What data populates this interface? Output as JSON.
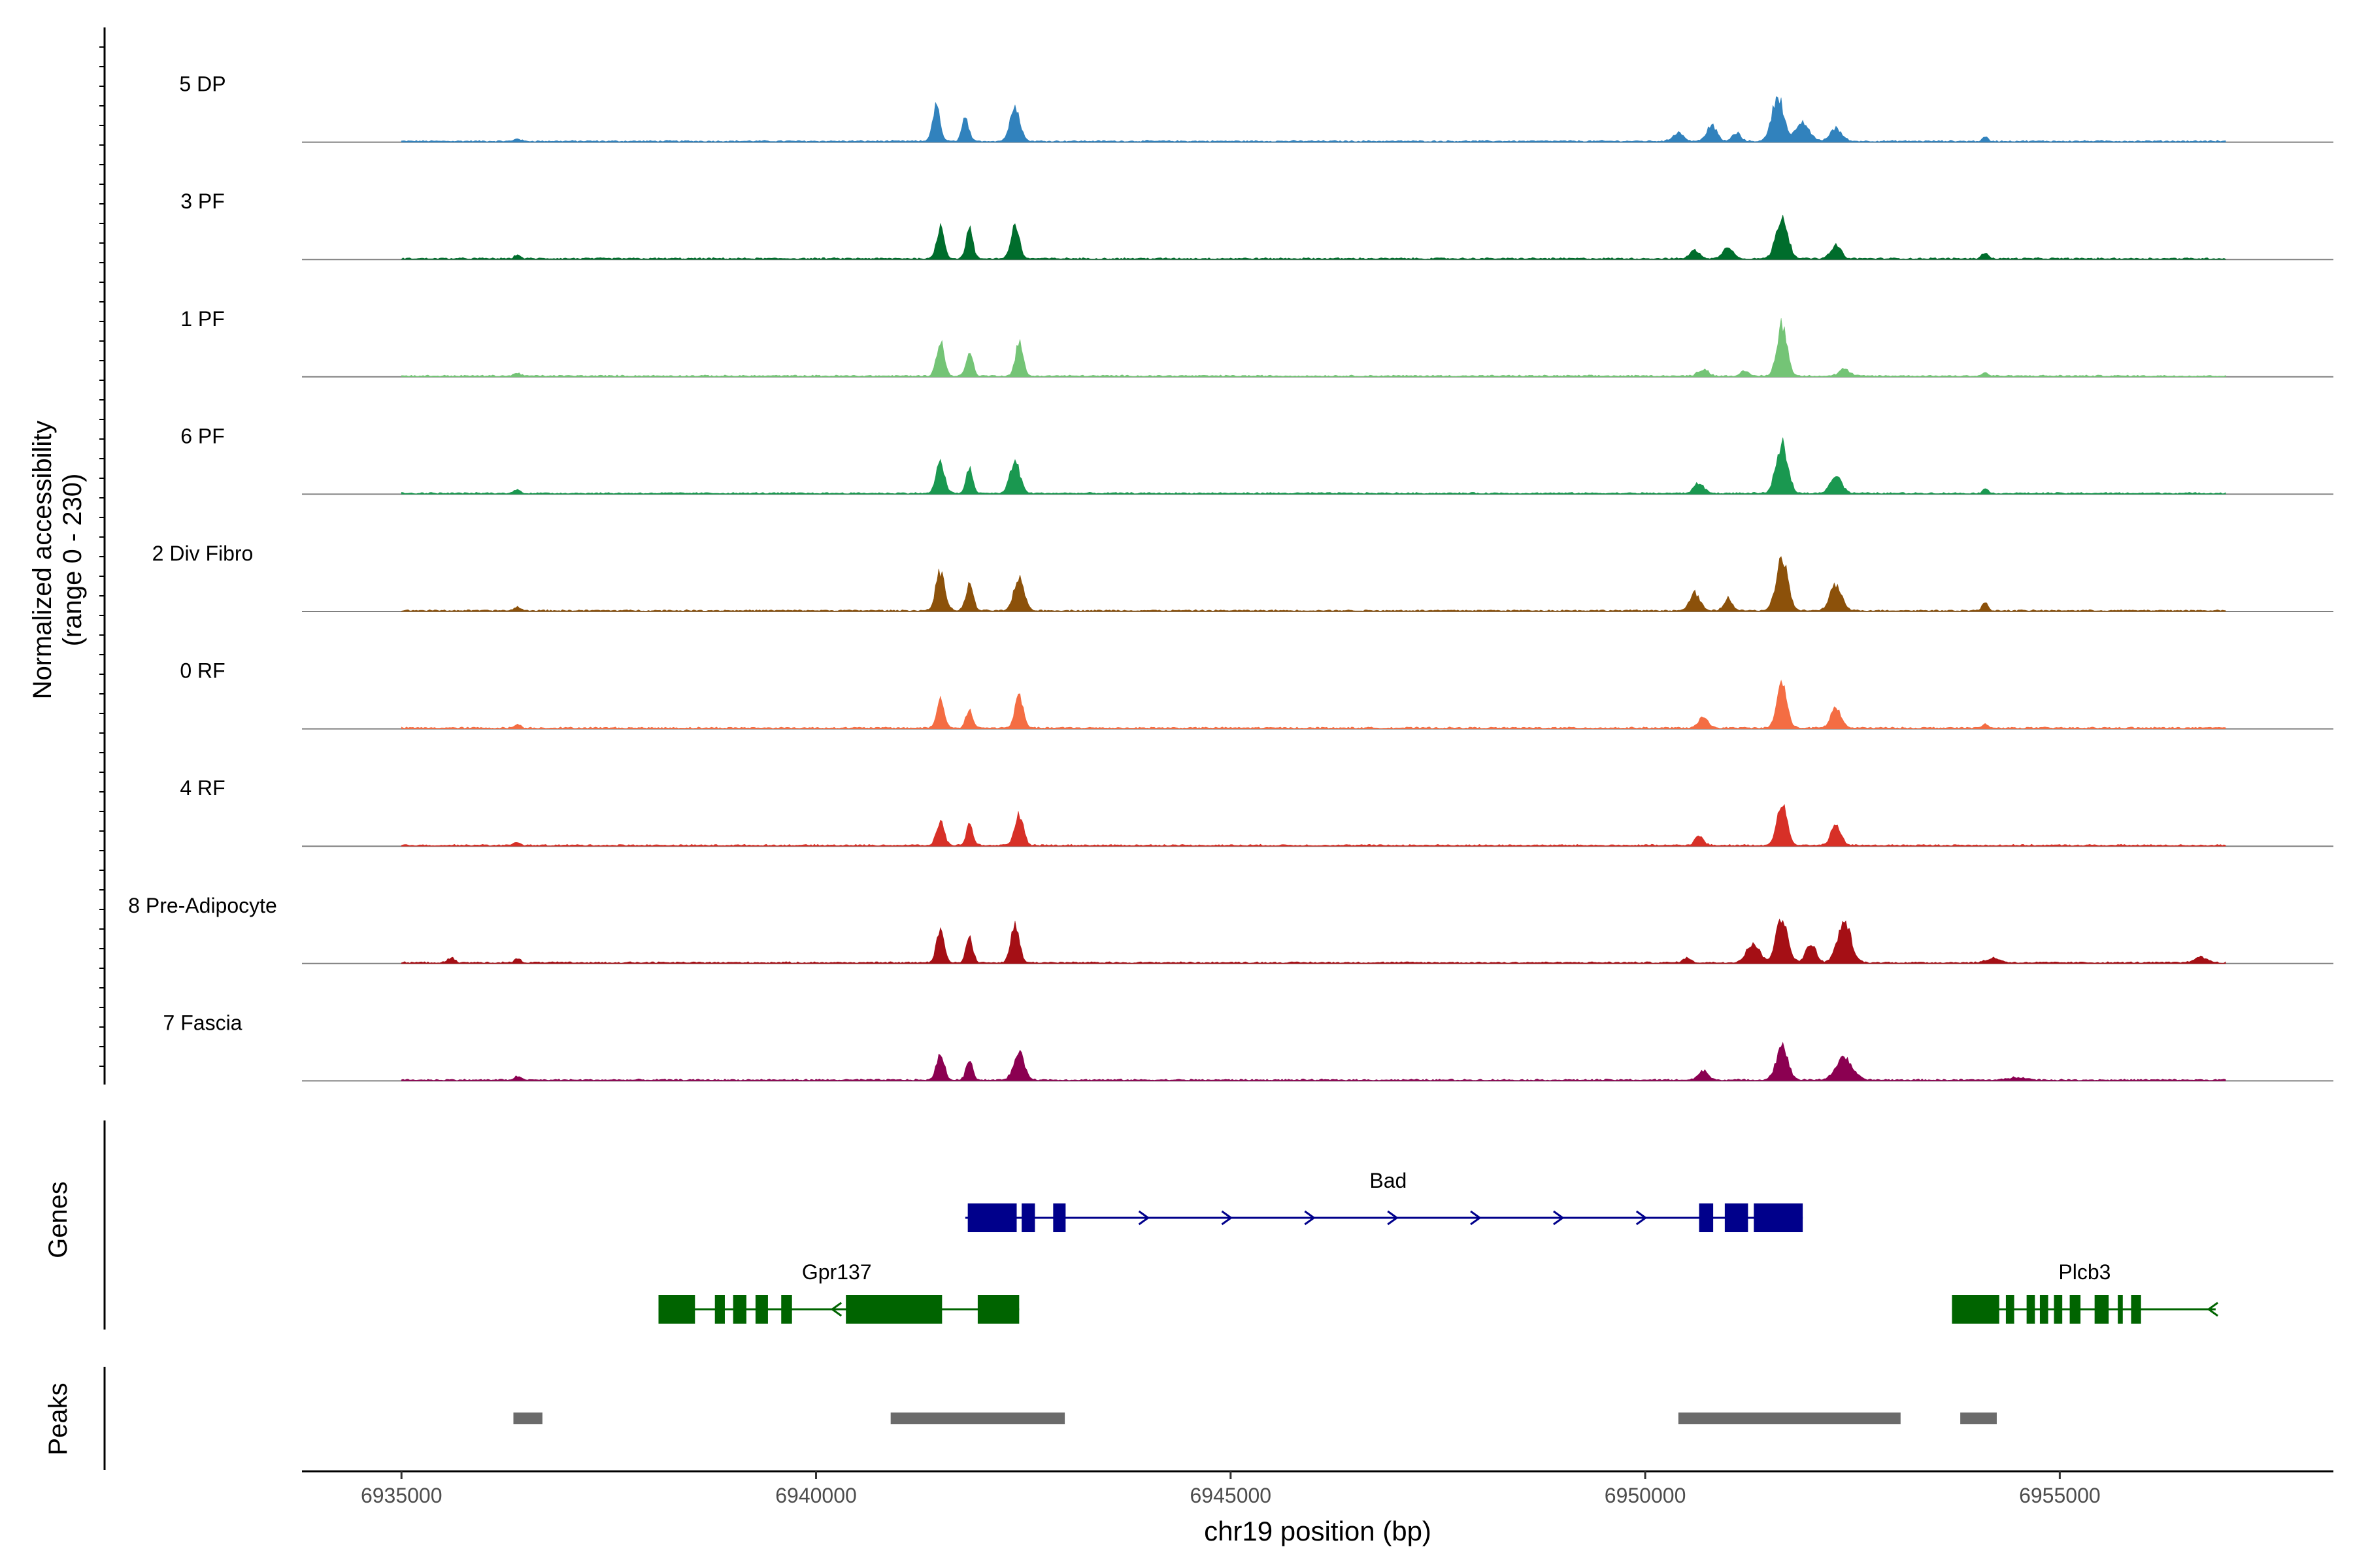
{
  "chart_data": {
    "type": "area",
    "title": "",
    "xlabel": "chr19 position (bp)",
    "ylabel_line1": "Normalized accessibility",
    "ylabel_line2": "(range 0 - 230)",
    "y_range": [
      0,
      230
    ],
    "x_range": [
      6933800,
      6958300
    ],
    "region": [
      6935000,
      6957000
    ],
    "x_ticks": [
      6935000,
      6940000,
      6945000,
      6950000,
      6955000
    ],
    "x_tick_labels": [
      "6935000",
      "6940000",
      "6945000",
      "6950000",
      "6955000"
    ],
    "genes_label": "Genes",
    "peaks_label": "Peaks",
    "background_level": 3,
    "tracks": [
      {
        "name": "5 DP",
        "color": "#3182bd",
        "peaks": [
          [
            6936400,
            6,
            35
          ],
          [
            6941450,
            78,
            45
          ],
          [
            6941800,
            55,
            40
          ],
          [
            6942400,
            72,
            60
          ],
          [
            6950400,
            20,
            60
          ],
          [
            6950800,
            35,
            60
          ],
          [
            6951100,
            18,
            50
          ],
          [
            6951600,
            100,
            70
          ],
          [
            6951900,
            40,
            80
          ],
          [
            6952300,
            28,
            70
          ],
          [
            6954100,
            10,
            30
          ]
        ]
      },
      {
        "name": "3 PF",
        "color": "#006d2c",
        "peaks": [
          [
            6936400,
            8,
            35
          ],
          [
            6941500,
            72,
            45
          ],
          [
            6941850,
            65,
            40
          ],
          [
            6942400,
            78,
            50
          ],
          [
            6950600,
            18,
            60
          ],
          [
            6951000,
            25,
            60
          ],
          [
            6951650,
            92,
            70
          ],
          [
            6952300,
            30,
            60
          ],
          [
            6954100,
            14,
            35
          ]
        ]
      },
      {
        "name": "1 PF",
        "color": "#74c476",
        "peaks": [
          [
            6936400,
            7,
            35
          ],
          [
            6941500,
            80,
            45
          ],
          [
            6941850,
            56,
            40
          ],
          [
            6942450,
            72,
            45
          ],
          [
            6950700,
            15,
            60
          ],
          [
            6951200,
            10,
            50
          ],
          [
            6951650,
            115,
            60
          ],
          [
            6952400,
            15,
            60
          ],
          [
            6954100,
            8,
            30
          ]
        ]
      },
      {
        "name": "6 PF",
        "color": "#1a9850",
        "peaks": [
          [
            6936400,
            9,
            35
          ],
          [
            6941500,
            68,
            50
          ],
          [
            6941850,
            56,
            40
          ],
          [
            6942400,
            70,
            60
          ],
          [
            6950650,
            22,
            60
          ],
          [
            6951650,
            108,
            70
          ],
          [
            6952300,
            38,
            70
          ],
          [
            6954100,
            11,
            30
          ]
        ]
      },
      {
        "name": "2 Div Fibro",
        "color": "#8c510a",
        "peaks": [
          [
            6936400,
            8,
            35
          ],
          [
            6941500,
            86,
            55
          ],
          [
            6941850,
            56,
            45
          ],
          [
            6942450,
            75,
            60
          ],
          [
            6950600,
            38,
            60
          ],
          [
            6951000,
            28,
            50
          ],
          [
            6951650,
            112,
            70
          ],
          [
            6952300,
            55,
            70
          ],
          [
            6954100,
            17,
            35
          ]
        ]
      },
      {
        "name": "0 RF",
        "color": "#f46d43",
        "peaks": [
          [
            6936400,
            8,
            35
          ],
          [
            6941500,
            65,
            45
          ],
          [
            6941850,
            42,
            40
          ],
          [
            6942450,
            68,
            50
          ],
          [
            6950700,
            22,
            60
          ],
          [
            6951650,
            98,
            60
          ],
          [
            6952300,
            45,
            60
          ],
          [
            6954100,
            9,
            30
          ]
        ]
      },
      {
        "name": "4 RF",
        "color": "#d73027",
        "peaks": [
          [
            6936400,
            7,
            35
          ],
          [
            6941500,
            55,
            45
          ],
          [
            6941850,
            45,
            40
          ],
          [
            6942450,
            68,
            50
          ],
          [
            6950650,
            20,
            50
          ],
          [
            6951650,
            96,
            60
          ],
          [
            6952300,
            44,
            60
          ]
        ]
      },
      {
        "name": "8 Pre-Adipocyte",
        "color": "#a50f15",
        "peaks": [
          [
            6935600,
            10,
            40
          ],
          [
            6936400,
            8,
            40
          ],
          [
            6941500,
            80,
            45
          ],
          [
            6941850,
            58,
            40
          ],
          [
            6942400,
            85,
            50
          ],
          [
            6950500,
            10,
            50
          ],
          [
            6951300,
            42,
            80
          ],
          [
            6951650,
            100,
            70
          ],
          [
            6952000,
            42,
            60
          ],
          [
            6952400,
            90,
            80
          ],
          [
            6954200,
            10,
            80
          ],
          [
            6956700,
            12,
            80
          ]
        ]
      },
      {
        "name": "7 Fascia",
        "color": "#8b0051",
        "peaks": [
          [
            6936400,
            8,
            40
          ],
          [
            6941500,
            62,
            45
          ],
          [
            6941850,
            45,
            40
          ],
          [
            6942450,
            58,
            65
          ],
          [
            6950700,
            20,
            60
          ],
          [
            6951650,
            73,
            70
          ],
          [
            6952400,
            48,
            100
          ],
          [
            6954500,
            6,
            100
          ]
        ]
      }
    ],
    "genes": [
      {
        "name": "Bad",
        "strand": "+",
        "color": "#00008b",
        "row": 0,
        "start": 6941800,
        "end": 6951900,
        "label_pos": 6946900,
        "exons": [
          [
            6941830,
            6942420
          ],
          [
            6942480,
            6942640
          ],
          [
            6942860,
            6943010
          ],
          [
            6950650,
            6950820
          ],
          [
            6950960,
            6951240
          ],
          [
            6951310,
            6951900
          ]
        ]
      },
      {
        "name": "Gpr137",
        "strand": "-",
        "color": "#006400",
        "row": 1,
        "start": 6938100,
        "end": 6942450,
        "label_pos": 6940250,
        "exons": [
          [
            6938100,
            6938540
          ],
          [
            6938780,
            6938900
          ],
          [
            6939000,
            6939160
          ],
          [
            6939270,
            6939420
          ],
          [
            6939580,
            6939710
          ],
          [
            6940360,
            6941520
          ],
          [
            6941950,
            6942450
          ]
        ]
      },
      {
        "name": "Plcb3",
        "strand": "-",
        "color": "#006400",
        "row": 1,
        "start": 6953700,
        "end": 6956880,
        "label_pos": 6955300,
        "exons": [
          [
            6953700,
            6954270
          ],
          [
            6954350,
            6954450
          ],
          [
            6954600,
            6954700
          ],
          [
            6954760,
            6954860
          ],
          [
            6954930,
            6955030
          ],
          [
            6955120,
            6955250
          ],
          [
            6955420,
            6955590
          ],
          [
            6955700,
            6955760
          ],
          [
            6955860,
            6955980
          ]
        ]
      }
    ],
    "peak_regions": [
      [
        6936350,
        6936700
      ],
      [
        6940900,
        6943000
      ],
      [
        6950400,
        6953080
      ],
      [
        6953800,
        6954240
      ]
    ]
  }
}
